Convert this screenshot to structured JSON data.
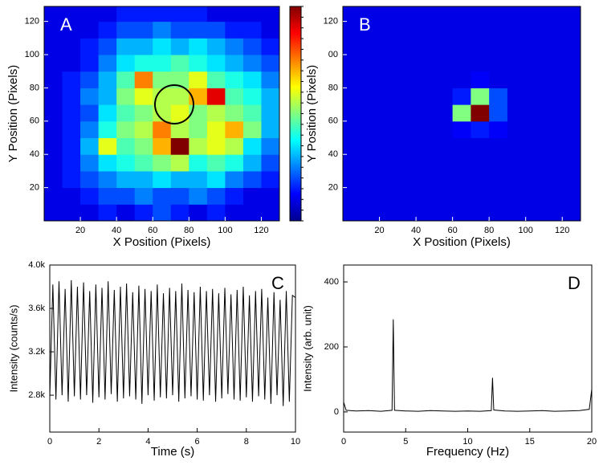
{
  "chart_data": [
    {
      "type": "heatmap",
      "label": "A",
      "xlabel": "X Position (Pixels)",
      "ylabel": "Y Position (Pixels)",
      "colorbar": true,
      "xlim": [
        0,
        130
      ],
      "ylim": [
        0,
        129
      ],
      "xticks": [
        20,
        40,
        60,
        80,
        100,
        120
      ],
      "yticks": [
        20,
        40,
        60,
        80,
        100,
        120
      ],
      "x": [
        5,
        15,
        25,
        35,
        45,
        55,
        65,
        75,
        85,
        95,
        105,
        115,
        125
      ],
      "y": [
        5,
        15,
        25,
        35,
        45,
        55,
        65,
        75,
        85,
        95,
        105,
        115,
        125
      ],
      "z": [
        [
          0.1,
          0.1,
          0.1,
          0.15,
          0.1,
          0.15,
          0.2,
          0.15,
          0.1,
          0.15,
          0.1,
          0.1,
          0.1
        ],
        [
          0.1,
          0.1,
          0.15,
          0.2,
          0.2,
          0.25,
          0.2,
          0.2,
          0.25,
          0.2,
          0.15,
          0.1,
          0.1
        ],
        [
          0.1,
          0.15,
          0.2,
          0.25,
          0.3,
          0.3,
          0.35,
          0.3,
          0.3,
          0.35,
          0.25,
          0.2,
          0.15
        ],
        [
          0.1,
          0.15,
          0.25,
          0.35,
          0.4,
          0.45,
          0.5,
          0.55,
          0.4,
          0.45,
          0.4,
          0.3,
          0.2
        ],
        [
          0.1,
          0.15,
          0.3,
          0.6,
          0.45,
          0.5,
          0.7,
          1,
          0.55,
          0.6,
          0.55,
          0.35,
          0.25
        ],
        [
          0.1,
          0.15,
          0.25,
          0.4,
          0.5,
          0.55,
          0.75,
          0.55,
          0.5,
          0.6,
          0.7,
          0.5,
          0.3
        ],
        [
          0.1,
          0.15,
          0.2,
          0.35,
          0.45,
          0.5,
          0.55,
          0.6,
          0.5,
          0.55,
          0.5,
          0.45,
          0.3
        ],
        [
          0.1,
          0.15,
          0.25,
          0.3,
          0.5,
          0.6,
          0.55,
          0.55,
          0.7,
          0.9,
          0.45,
          0.4,
          0.3
        ],
        [
          0.1,
          0.15,
          0.2,
          0.3,
          0.45,
          0.75,
          0.5,
          0.5,
          0.6,
          0.45,
          0.4,
          0.35,
          0.25
        ],
        [
          0.1,
          0.1,
          0.15,
          0.25,
          0.35,
          0.4,
          0.4,
          0.45,
          0.4,
          0.35,
          0.3,
          0.25,
          0.2
        ],
        [
          0.1,
          0.1,
          0.15,
          0.2,
          0.3,
          0.3,
          0.35,
          0.3,
          0.35,
          0.3,
          0.25,
          0.2,
          0.15
        ],
        [
          0.1,
          0.1,
          0.1,
          0.15,
          0.2,
          0.2,
          0.25,
          0.2,
          0.2,
          0.2,
          0.15,
          0.15,
          0.1
        ],
        [
          0.1,
          0.1,
          0.1,
          0.1,
          0.15,
          0.15,
          0.15,
          0.15,
          0.15,
          0.1,
          0.1,
          0.1,
          0.1
        ]
      ]
    },
    {
      "type": "heatmap",
      "label": "B",
      "xlabel": "X Position (Pixels)",
      "ylabel": "Y Position (Pixels)",
      "xlim": [
        0,
        130
      ],
      "ylim": [
        0,
        129
      ],
      "xticks": [
        20,
        40,
        60,
        80,
        100,
        120
      ],
      "yticks": [
        20,
        40,
        60,
        80,
        {
          "value": 100,
          "label": "00"
        },
        120
      ],
      "x": [
        5,
        15,
        25,
        35,
        45,
        55,
        65,
        75,
        85,
        95,
        105,
        115,
        125
      ],
      "y": [
        5,
        15,
        25,
        35,
        45,
        55,
        65,
        75,
        85,
        95,
        105,
        115,
        125
      ],
      "z": [
        [
          0.1,
          0.1,
          0.1,
          0.1,
          0.1,
          0.1,
          0.1,
          0.1,
          0.1,
          0.1,
          0.1,
          0.1,
          0.1
        ],
        [
          0.1,
          0.1,
          0.1,
          0.1,
          0.1,
          0.1,
          0.1,
          0.1,
          0.1,
          0.1,
          0.1,
          0.1,
          0.1
        ],
        [
          0.1,
          0.1,
          0.1,
          0.1,
          0.1,
          0.1,
          0.1,
          0.1,
          0.1,
          0.1,
          0.1,
          0.1,
          0.1
        ],
        [
          0.1,
          0.1,
          0.1,
          0.1,
          0.1,
          0.1,
          0.1,
          0.1,
          0.1,
          0.1,
          0.1,
          0.1,
          0.1
        ],
        [
          0.1,
          0.1,
          0.1,
          0.1,
          0.1,
          0.1,
          0.1,
          0.1,
          0.1,
          0.1,
          0.1,
          0.1,
          0.1
        ],
        [
          0.1,
          0.1,
          0.1,
          0.1,
          0.1,
          0.1,
          0.12,
          0.15,
          0.12,
          0.1,
          0.1,
          0.1,
          0.1
        ],
        [
          0.1,
          0.1,
          0.1,
          0.1,
          0.1,
          0.1,
          0.5,
          1,
          0.2,
          0.1,
          0.1,
          0.1,
          0.1
        ],
        [
          0.1,
          0.1,
          0.1,
          0.1,
          0.1,
          0.1,
          0.15,
          0.5,
          0.2,
          0.1,
          0.1,
          0.1,
          0.1
        ],
        [
          0.1,
          0.1,
          0.1,
          0.1,
          0.1,
          0.1,
          0.1,
          0.12,
          0.1,
          0.1,
          0.1,
          0.1,
          0.1
        ],
        [
          0.1,
          0.1,
          0.1,
          0.1,
          0.1,
          0.1,
          0.1,
          0.1,
          0.1,
          0.1,
          0.1,
          0.1,
          0.1
        ],
        [
          0.1,
          0.1,
          0.1,
          0.1,
          0.1,
          0.1,
          0.1,
          0.1,
          0.1,
          0.1,
          0.1,
          0.1,
          0.1
        ],
        [
          0.1,
          0.1,
          0.1,
          0.1,
          0.1,
          0.1,
          0.1,
          0.1,
          0.1,
          0.1,
          0.1,
          0.1,
          0.1
        ],
        [
          0.1,
          0.1,
          0.1,
          0.1,
          0.1,
          0.1,
          0.1,
          0.1,
          0.1,
          0.1,
          0.1,
          0.1,
          0.1
        ]
      ]
    },
    {
      "type": "line",
      "label": "C",
      "xlabel": "Time (s)",
      "ylabel": "Intensity (counts/s)",
      "color": "#000000",
      "xlim": [
        0,
        10
      ],
      "ylim": [
        2460,
        4000
      ],
      "xticks": [
        0,
        2,
        4,
        6,
        8,
        10
      ],
      "yticks": [
        {
          "value": 2800,
          "label": "2.8k"
        },
        {
          "value": 3200,
          "label": "3.2k"
        },
        {
          "value": 3600,
          "label": "3.6k"
        },
        {
          "value": 4000,
          "label": "4.0k"
        }
      ],
      "x": [
        0,
        0.125,
        0.25,
        0.375,
        0.5,
        0.625,
        0.75,
        0.875,
        1,
        1.125,
        1.25,
        1.375,
        1.5,
        1.625,
        1.75,
        1.875,
        2,
        2.125,
        2.25,
        2.375,
        2.5,
        2.625,
        2.75,
        2.875,
        3,
        3.125,
        3.25,
        3.375,
        3.5,
        3.625,
        3.75,
        3.875,
        4,
        4.125,
        4.25,
        4.375,
        4.5,
        4.625,
        4.75,
        4.875,
        5,
        5.125,
        5.25,
        5.375,
        5.5,
        5.625,
        5.75,
        5.875,
        6,
        6.125,
        6.25,
        6.375,
        6.5,
        6.625,
        6.75,
        6.875,
        7,
        7.125,
        7.25,
        7.375,
        7.5,
        7.625,
        7.75,
        7.875,
        8,
        8.125,
        8.25,
        8.375,
        8.5,
        8.625,
        8.75,
        8.875,
        9,
        9.125,
        9.25,
        9.375,
        9.5,
        9.625,
        9.75,
        9.875,
        10
      ],
      "values": [
        2780,
        3820,
        2760,
        3850,
        2800,
        3780,
        2740,
        3860,
        2790,
        3800,
        2760,
        3840,
        2800,
        3760,
        2730,
        3820,
        2780,
        3790,
        2760,
        3850,
        2810,
        3770,
        2740,
        3800,
        2770,
        3830,
        2790,
        3750,
        2760,
        3810,
        2720,
        3780,
        2800,
        3760,
        2750,
        3820,
        2780,
        3740,
        2770,
        3790,
        2800,
        3760,
        2740,
        3830,
        2770,
        3770,
        2790,
        3750,
        2760,
        3800,
        2750,
        3760,
        2800,
        3780,
        2740,
        3740,
        2770,
        3790,
        2810,
        3730,
        2760,
        3770,
        2750,
        3800,
        2780,
        3720,
        2740,
        3760,
        2790,
        3780,
        2760,
        3700,
        2720,
        3750,
        2800,
        3680,
        2700,
        3760,
        2740,
        3720,
        3700
      ]
    },
    {
      "type": "line",
      "label": "D",
      "xlabel": "Frequency (Hz)",
      "ylabel": "Intensity (arb. unit)",
      "color": "#000000",
      "xlim": [
        0,
        20
      ],
      "ylim": [
        -62,
        452
      ],
      "xticks": [
        0,
        5,
        10,
        15,
        20
      ],
      "yticks": [
        0,
        200,
        400
      ],
      "x": [
        0,
        0.2,
        1,
        2,
        3,
        3.9,
        4,
        4.1,
        5,
        6,
        7,
        8,
        9,
        10,
        11,
        11.9,
        12,
        12.1,
        13,
        14,
        15,
        16,
        17,
        18,
        19,
        19.8,
        20
      ],
      "values": [
        30,
        5,
        3,
        4,
        2,
        5,
        285,
        5,
        3,
        2,
        4,
        3,
        2,
        3,
        2,
        4,
        105,
        6,
        3,
        2,
        3,
        4,
        2,
        3,
        4,
        8,
        70
      ]
    }
  ]
}
